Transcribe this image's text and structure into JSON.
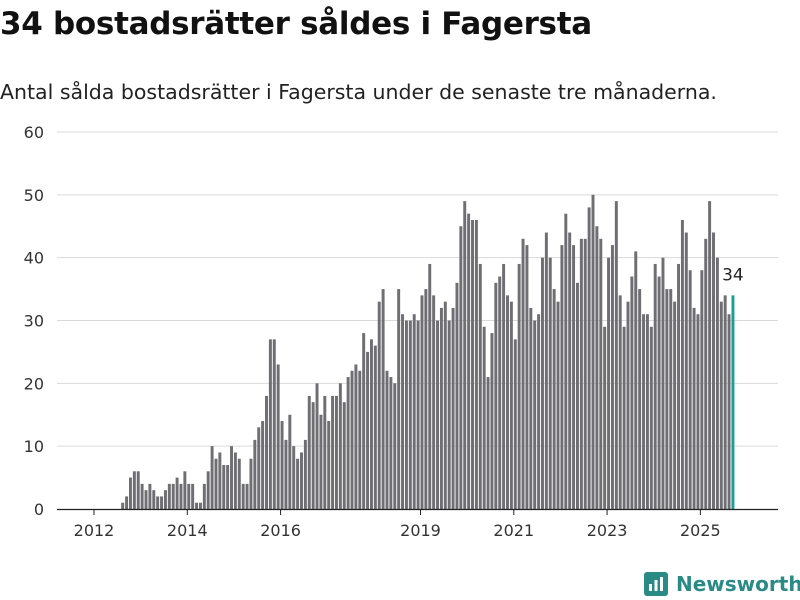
{
  "title": "34 bostadsrätter såldes i Fagersta",
  "subtitle": "Antal sålda bostadsrätter i Fagersta under de senaste tre månaderna.",
  "brand": "Newsworthy",
  "colors": {
    "bar": "#6e6e73",
    "highlight": "#1a9e96",
    "grid": "#d9d9d9",
    "brand": "#2a8a86"
  },
  "chart_data": {
    "type": "bar",
    "ylim": [
      0,
      60
    ],
    "yticks": [
      0,
      10,
      20,
      30,
      40,
      50,
      60
    ],
    "xticks": [
      "2012",
      "2014",
      "2016",
      "2019",
      "2021",
      "2023",
      "2025"
    ],
    "grid": true,
    "last_label": "34",
    "highlight_last": true,
    "x_start": "2012-01",
    "frequency": "monthly",
    "values": [
      0,
      0,
      0,
      0,
      0,
      0,
      0,
      1,
      2,
      5,
      6,
      6,
      4,
      3,
      4,
      3,
      2,
      2,
      3,
      4,
      4,
      5,
      4,
      6,
      4,
      4,
      1,
      1,
      4,
      6,
      10,
      8,
      9,
      7,
      7,
      10,
      9,
      8,
      4,
      4,
      8,
      11,
      13,
      14,
      18,
      27,
      27,
      23,
      14,
      11,
      15,
      10,
      8,
      9,
      11,
      18,
      17,
      20,
      15,
      18,
      14,
      18,
      18,
      20,
      17,
      21,
      22,
      23,
      22,
      28,
      25,
      27,
      26,
      33,
      35,
      22,
      21,
      20,
      35,
      31,
      30,
      30,
      31,
      30,
      34,
      35,
      39,
      34,
      30,
      32,
      33,
      30,
      32,
      36,
      45,
      49,
      47,
      46,
      46,
      39,
      29,
      21,
      28,
      36,
      37,
      39,
      34,
      33,
      27,
      39,
      43,
      42,
      32,
      30,
      31,
      40,
      44,
      40,
      35,
      33,
      42,
      47,
      44,
      42,
      36,
      43,
      43,
      48,
      50,
      45,
      43,
      29,
      40,
      42,
      49,
      34,
      29,
      33,
      37,
      41,
      35,
      31,
      31,
      29,
      39,
      37,
      40,
      35,
      35,
      33,
      39,
      46,
      44,
      38,
      32,
      31,
      38,
      43,
      49,
      44,
      40,
      33,
      34,
      31,
      34
    ]
  }
}
